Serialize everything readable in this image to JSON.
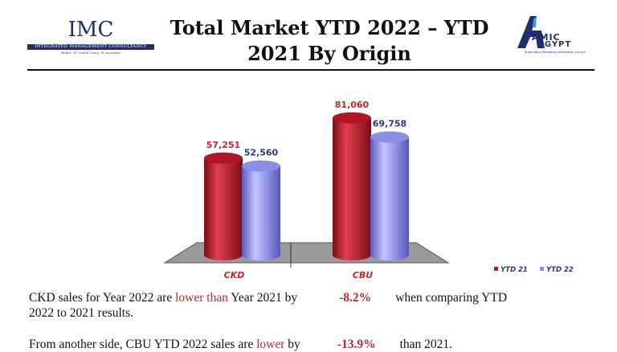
{
  "header": {
    "title_line1": "Total Market YTD 2022 – YTD",
    "title_line2": "2021 By Origin",
    "left_logo": {
      "name": "IMC",
      "band": "INTEGRATED MANAGEMENT CONSULTANCY",
      "tagline": "Rudin' 'N' Coded Crazy 'N' Accurate"
    },
    "right_logo": {
      "top": "AMIC",
      "bottom": "EGYPT",
      "sub": "Automotive Marketing Information Council"
    }
  },
  "colors": {
    "ytd21": "#c0182c",
    "ytd22": "#8b91f2",
    "floor": "#9a9a9a",
    "label_red": "#c0282a",
    "label_blue": "#2a3a70"
  },
  "chart_data": {
    "type": "bar",
    "categories": [
      "CKD",
      "CBU"
    ],
    "series": [
      {
        "name": "YTD 21",
        "values": [
          57251,
          81060
        ],
        "labels": [
          "57,251",
          "81,060"
        ]
      },
      {
        "name": "YTD 22",
        "values": [
          52560,
          69758
        ],
        "labels": [
          "52,560",
          "69,758"
        ]
      }
    ],
    "ylim": [
      0,
      90000
    ],
    "legend": "bottom-right",
    "grid": false
  },
  "text": {
    "p1_a": "CKD  sales  for  Year  2022  are ",
    "p1_hl": "lower than",
    "p1_b": "  Year  2021 by",
    "p1_pct": "-8.2%",
    "p1_c": "when comparing YTD",
    "p1_d": "2022 to 2021 results.",
    "p2_a": "From  another  side,  CBU  YTD  2022  sales  are ",
    "p2_hl": "lower",
    "p2_b": " by",
    "p2_pct": "-13.9%",
    "p2_c": "than 2021."
  }
}
